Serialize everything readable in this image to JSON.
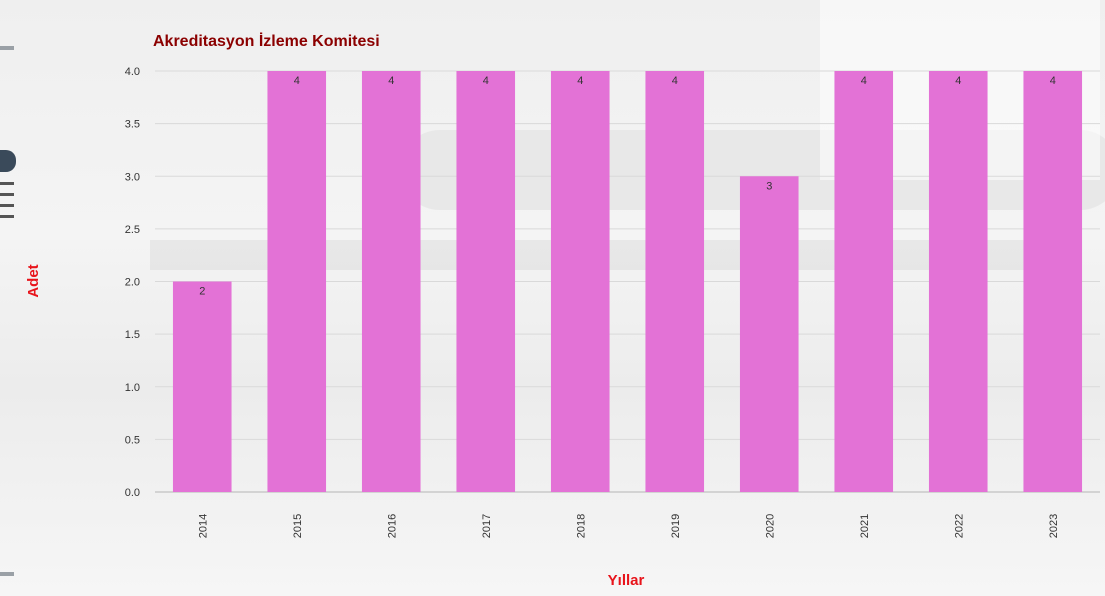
{
  "chart_data": {
    "type": "bar",
    "title": "Akreditasyon İzleme Komitesi",
    "xlabel": "Yıllar",
    "ylabel": "Adet",
    "categories": [
      "2014",
      "2015",
      "2016",
      "2017",
      "2018",
      "2019",
      "2020",
      "2021",
      "2022",
      "2023"
    ],
    "values": [
      2,
      4,
      4,
      4,
      4,
      4,
      3,
      4,
      4,
      4
    ],
    "data_labels": [
      "2",
      "4",
      "4",
      "4",
      "4",
      "4",
      "3",
      "4",
      "4",
      "4"
    ],
    "ylim": [
      0,
      4
    ],
    "yticks": [
      "0.0",
      "0.5",
      "1.0",
      "1.5",
      "2.0",
      "2.5",
      "3.0",
      "3.5",
      "4.0"
    ],
    "grid": true,
    "legend": "none",
    "colors": {
      "bar": "#e372d6",
      "title": "#8b0000",
      "axis_label": "#e8141b",
      "tick": "#333333",
      "grid": "#d9d9d9"
    }
  }
}
